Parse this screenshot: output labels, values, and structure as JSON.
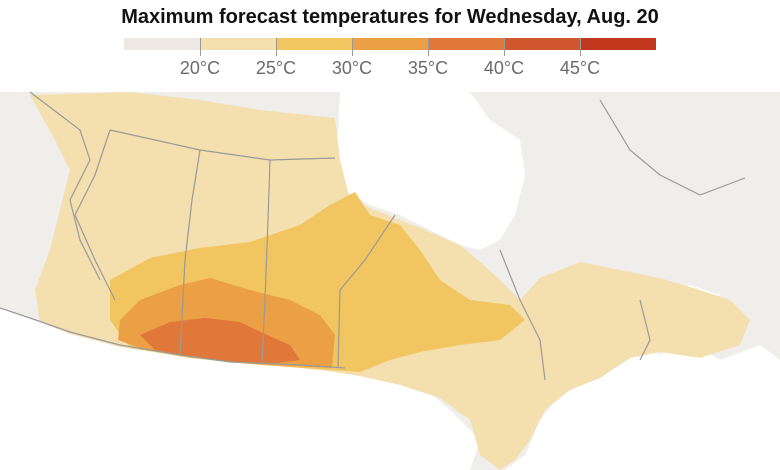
{
  "title": "Maximum forecast temperatures for Wednesday, Aug. 20",
  "legend": {
    "colors": [
      "#ede8e2",
      "#f4dfae",
      "#f1c660",
      "#eba045",
      "#e0783a",
      "#d1572f",
      "#c1381f"
    ],
    "ticks": [
      "20°C",
      "25°C",
      "30°C",
      "35°C",
      "40°C",
      "45°C"
    ]
  },
  "map": {
    "land_color": "#efeeeb",
    "border_color": "#9a9a9a",
    "water_color": "#ffffff",
    "zones": {
      "below_20": "#ede8e2",
      "c20_25": "#f4dfae",
      "c25_30": "#f1c660",
      "c30_35": "#eba045",
      "c35_40": "#e0783a"
    }
  }
}
